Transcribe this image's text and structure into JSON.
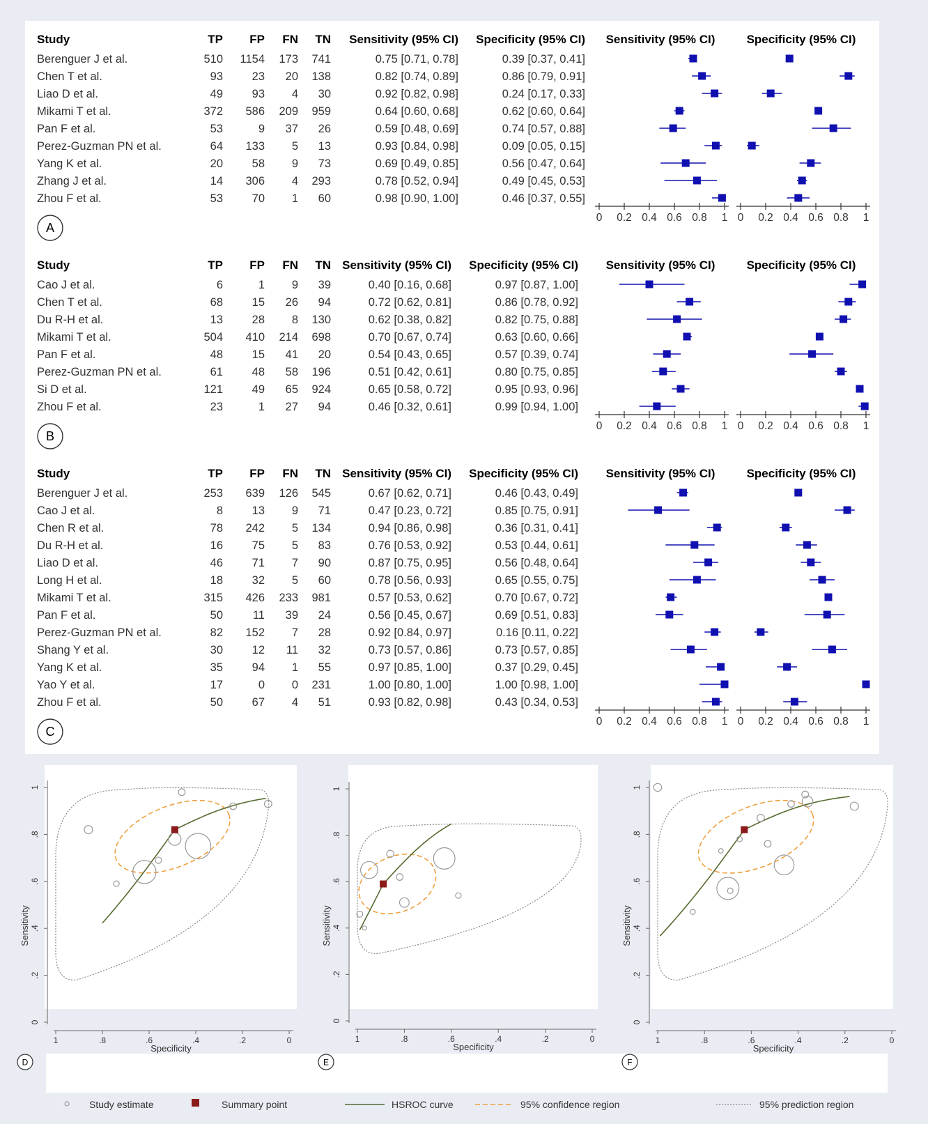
{
  "colors": {
    "marker": "#1010b0",
    "ci_line": "#1010b0",
    "summary": "#8b1a1a",
    "hsroc": "#556b2f",
    "confidence": "#f0a040",
    "prediction": "#888888",
    "study_circle": "#9a9a9a"
  },
  "forest_headers": {
    "study": "Study",
    "tp": "TP",
    "fp": "FP",
    "fn": "FN",
    "tn": "TN",
    "sens": "Sensitivity (95% CI)",
    "spec": "Specificity (95% CI)",
    "sens_plot": "Sensitivity (95% CI)",
    "spec_plot": "Specificity (95% CI)"
  },
  "panel_labels": {
    "A": "A",
    "B": "B",
    "C": "C",
    "D": "D",
    "E": "E",
    "F": "F"
  },
  "chart_data": [
    {
      "type": "table",
      "panel": "A",
      "axis_ticks": [
        "0",
        "0.2",
        "0.4",
        "0.6",
        "0.8",
        "1"
      ],
      "rows": [
        {
          "study": "Berenguer J et al.",
          "tp": 510,
          "fp": 1154,
          "fn": 173,
          "tn": 741,
          "sens": 0.75,
          "sens_lo": 0.71,
          "sens_hi": 0.78,
          "spec": 0.39,
          "spec_lo": 0.37,
          "spec_hi": 0.41,
          "sens_text": "0.75 [0.71, 0.78]",
          "spec_text": "0.39 [0.37, 0.41]"
        },
        {
          "study": "Chen T et al.",
          "tp": 93,
          "fp": 23,
          "fn": 20,
          "tn": 138,
          "sens": 0.82,
          "sens_lo": 0.74,
          "sens_hi": 0.89,
          "spec": 0.86,
          "spec_lo": 0.79,
          "spec_hi": 0.91,
          "sens_text": "0.82 [0.74, 0.89]",
          "spec_text": "0.86 [0.79, 0.91]"
        },
        {
          "study": "Liao D et al.",
          "tp": 49,
          "fp": 93,
          "fn": 4,
          "tn": 30,
          "sens": 0.92,
          "sens_lo": 0.82,
          "sens_hi": 0.98,
          "spec": 0.24,
          "spec_lo": 0.17,
          "spec_hi": 0.33,
          "sens_text": "0.92 [0.82, 0.98]",
          "spec_text": "0.24 [0.17, 0.33]"
        },
        {
          "study": "Mikami T et al.",
          "tp": 372,
          "fp": 586,
          "fn": 209,
          "tn": 959,
          "sens": 0.64,
          "sens_lo": 0.6,
          "sens_hi": 0.68,
          "spec": 0.62,
          "spec_lo": 0.6,
          "spec_hi": 0.64,
          "sens_text": "0.64 [0.60, 0.68]",
          "spec_text": "0.62 [0.60, 0.64]"
        },
        {
          "study": "Pan F et al.",
          "tp": 53,
          "fp": 9,
          "fn": 37,
          "tn": 26,
          "sens": 0.59,
          "sens_lo": 0.48,
          "sens_hi": 0.69,
          "spec": 0.74,
          "spec_lo": 0.57,
          "spec_hi": 0.88,
          "sens_text": "0.59 [0.48, 0.69]",
          "spec_text": "0.74 [0.57, 0.88]"
        },
        {
          "study": "Perez-Guzman PN et al.",
          "tp": 64,
          "fp": 133,
          "fn": 5,
          "tn": 13,
          "sens": 0.93,
          "sens_lo": 0.84,
          "sens_hi": 0.98,
          "spec": 0.09,
          "spec_lo": 0.05,
          "spec_hi": 0.15,
          "sens_text": "0.93 [0.84, 0.98]",
          "spec_text": "0.09 [0.05, 0.15]"
        },
        {
          "study": "Yang K et al.",
          "tp": 20,
          "fp": 58,
          "fn": 9,
          "tn": 73,
          "sens": 0.69,
          "sens_lo": 0.49,
          "sens_hi": 0.85,
          "spec": 0.56,
          "spec_lo": 0.47,
          "spec_hi": 0.64,
          "sens_text": "0.69 [0.49, 0.85]",
          "spec_text": "0.56 [0.47, 0.64]"
        },
        {
          "study": "Zhang J et al.",
          "tp": 14,
          "fp": 306,
          "fn": 4,
          "tn": 293,
          "sens": 0.78,
          "sens_lo": 0.52,
          "sens_hi": 0.94,
          "spec": 0.49,
          "spec_lo": 0.45,
          "spec_hi": 0.53,
          "sens_text": "0.78 [0.52, 0.94]",
          "spec_text": "0.49 [0.45, 0.53]"
        },
        {
          "study": "Zhou F et al.",
          "tp": 53,
          "fp": 70,
          "fn": 1,
          "tn": 60,
          "sens": 0.98,
          "sens_lo": 0.9,
          "sens_hi": 1.0,
          "spec": 0.46,
          "spec_lo": 0.37,
          "spec_hi": 0.55,
          "sens_text": "0.98 [0.90, 1.00]",
          "spec_text": "0.46 [0.37, 0.55]"
        }
      ]
    },
    {
      "type": "table",
      "panel": "B",
      "axis_ticks": [
        "0",
        "0.2",
        "0.4",
        "0.6",
        "0.8",
        "1"
      ],
      "rows": [
        {
          "study": "Cao J et al.",
          "tp": 6,
          "fp": 1,
          "fn": 9,
          "tn": 39,
          "sens": 0.4,
          "sens_lo": 0.16,
          "sens_hi": 0.68,
          "spec": 0.97,
          "spec_lo": 0.87,
          "spec_hi": 1.0,
          "sens_text": "0.40 [0.16, 0.68]",
          "spec_text": "0.97 [0.87, 1.00]"
        },
        {
          "study": "Chen T et al.",
          "tp": 68,
          "fp": 15,
          "fn": 26,
          "tn": 94,
          "sens": 0.72,
          "sens_lo": 0.62,
          "sens_hi": 0.81,
          "spec": 0.86,
          "spec_lo": 0.78,
          "spec_hi": 0.92,
          "sens_text": "0.72 [0.62, 0.81]",
          "spec_text": "0.86 [0.78, 0.92]"
        },
        {
          "study": "Du R-H et al.",
          "tp": 13,
          "fp": 28,
          "fn": 8,
          "tn": 130,
          "sens": 0.62,
          "sens_lo": 0.38,
          "sens_hi": 0.82,
          "spec": 0.82,
          "spec_lo": 0.75,
          "spec_hi": 0.88,
          "sens_text": "0.62 [0.38, 0.82]",
          "spec_text": "0.82 [0.75, 0.88]"
        },
        {
          "study": "Mikami T et al.",
          "tp": 504,
          "fp": 410,
          "fn": 214,
          "tn": 698,
          "sens": 0.7,
          "sens_lo": 0.67,
          "sens_hi": 0.74,
          "spec": 0.63,
          "spec_lo": 0.6,
          "spec_hi": 0.66,
          "sens_text": "0.70 [0.67, 0.74]",
          "spec_text": "0.63 [0.60, 0.66]"
        },
        {
          "study": "Pan F et al.",
          "tp": 48,
          "fp": 15,
          "fn": 41,
          "tn": 20,
          "sens": 0.54,
          "sens_lo": 0.43,
          "sens_hi": 0.65,
          "spec": 0.57,
          "spec_lo": 0.39,
          "spec_hi": 0.74,
          "sens_text": "0.54 [0.43, 0.65]",
          "spec_text": "0.57 [0.39, 0.74]"
        },
        {
          "study": "Perez-Guzman PN et al.",
          "tp": 61,
          "fp": 48,
          "fn": 58,
          "tn": 196,
          "sens": 0.51,
          "sens_lo": 0.42,
          "sens_hi": 0.61,
          "spec": 0.8,
          "spec_lo": 0.75,
          "spec_hi": 0.85,
          "sens_text": "0.51 [0.42, 0.61]",
          "spec_text": "0.80 [0.75, 0.85]"
        },
        {
          "study": "Si D et al.",
          "tp": 121,
          "fp": 49,
          "fn": 65,
          "tn": 924,
          "sens": 0.65,
          "sens_lo": 0.58,
          "sens_hi": 0.72,
          "spec": 0.95,
          "spec_lo": 0.93,
          "spec_hi": 0.96,
          "sens_text": "0.65 [0.58, 0.72]",
          "spec_text": "0.95 [0.93, 0.96]"
        },
        {
          "study": "Zhou F et al.",
          "tp": 23,
          "fp": 1,
          "fn": 27,
          "tn": 94,
          "sens": 0.46,
          "sens_lo": 0.32,
          "sens_hi": 0.61,
          "spec": 0.99,
          "spec_lo": 0.94,
          "spec_hi": 1.0,
          "sens_text": "0.46 [0.32, 0.61]",
          "spec_text": "0.99 [0.94, 1.00]"
        }
      ]
    },
    {
      "type": "table",
      "panel": "C",
      "axis_ticks": [
        "0",
        "0.2",
        "0.4",
        "0.6",
        "0.8",
        "1"
      ],
      "rows": [
        {
          "study": "Berenguer J et al.",
          "tp": 253,
          "fp": 639,
          "fn": 126,
          "tn": 545,
          "sens": 0.67,
          "sens_lo": 0.62,
          "sens_hi": 0.71,
          "spec": 0.46,
          "spec_lo": 0.43,
          "spec_hi": 0.49,
          "sens_text": "0.67 [0.62, 0.71]",
          "spec_text": "0.46 [0.43, 0.49]"
        },
        {
          "study": "Cao J et al.",
          "tp": 8,
          "fp": 13,
          "fn": 9,
          "tn": 71,
          "sens": 0.47,
          "sens_lo": 0.23,
          "sens_hi": 0.72,
          "spec": 0.85,
          "spec_lo": 0.75,
          "spec_hi": 0.91,
          "sens_text": "0.47 [0.23, 0.72]",
          "spec_text": "0.85 [0.75, 0.91]"
        },
        {
          "study": "Chen R et al.",
          "tp": 78,
          "fp": 242,
          "fn": 5,
          "tn": 134,
          "sens": 0.94,
          "sens_lo": 0.86,
          "sens_hi": 0.98,
          "spec": 0.36,
          "spec_lo": 0.31,
          "spec_hi": 0.41,
          "sens_text": "0.94 [0.86, 0.98]",
          "spec_text": "0.36 [0.31, 0.41]"
        },
        {
          "study": "Du R-H et al.",
          "tp": 16,
          "fp": 75,
          "fn": 5,
          "tn": 83,
          "sens": 0.76,
          "sens_lo": 0.53,
          "sens_hi": 0.92,
          "spec": 0.53,
          "spec_lo": 0.44,
          "spec_hi": 0.61,
          "sens_text": "0.76 [0.53, 0.92]",
          "spec_text": "0.53 [0.44, 0.61]"
        },
        {
          "study": "Liao D et al.",
          "tp": 46,
          "fp": 71,
          "fn": 7,
          "tn": 90,
          "sens": 0.87,
          "sens_lo": 0.75,
          "sens_hi": 0.95,
          "spec": 0.56,
          "spec_lo": 0.48,
          "spec_hi": 0.64,
          "sens_text": "0.87 [0.75, 0.95]",
          "spec_text": "0.56 [0.48, 0.64]"
        },
        {
          "study": "Long H et al.",
          "tp": 18,
          "fp": 32,
          "fn": 5,
          "tn": 60,
          "sens": 0.78,
          "sens_lo": 0.56,
          "sens_hi": 0.93,
          "spec": 0.65,
          "spec_lo": 0.55,
          "spec_hi": 0.75,
          "sens_text": "0.78 [0.56, 0.93]",
          "spec_text": "0.65 [0.55, 0.75]"
        },
        {
          "study": "Mikami T et al.",
          "tp": 315,
          "fp": 426,
          "fn": 233,
          "tn": 981,
          "sens": 0.57,
          "sens_lo": 0.53,
          "sens_hi": 0.62,
          "spec": 0.7,
          "spec_lo": 0.67,
          "spec_hi": 0.72,
          "sens_text": "0.57 [0.53, 0.62]",
          "spec_text": "0.70 [0.67, 0.72]"
        },
        {
          "study": "Pan F et al.",
          "tp": 50,
          "fp": 11,
          "fn": 39,
          "tn": 24,
          "sens": 0.56,
          "sens_lo": 0.45,
          "sens_hi": 0.67,
          "spec": 0.69,
          "spec_lo": 0.51,
          "spec_hi": 0.83,
          "sens_text": "0.56 [0.45, 0.67]",
          "spec_text": "0.69 [0.51, 0.83]"
        },
        {
          "study": "Perez-Guzman PN et al.",
          "tp": 82,
          "fp": 152,
          "fn": 7,
          "tn": 28,
          "sens": 0.92,
          "sens_lo": 0.84,
          "sens_hi": 0.97,
          "spec": 0.16,
          "spec_lo": 0.11,
          "spec_hi": 0.22,
          "sens_text": "0.92 [0.84, 0.97]",
          "spec_text": "0.16 [0.11, 0.22]"
        },
        {
          "study": "Shang Y et al.",
          "tp": 30,
          "fp": 12,
          "fn": 11,
          "tn": 32,
          "sens": 0.73,
          "sens_lo": 0.57,
          "sens_hi": 0.86,
          "spec": 0.73,
          "spec_lo": 0.57,
          "spec_hi": 0.85,
          "sens_text": "0.73 [0.57, 0.86]",
          "spec_text": "0.73 [0.57, 0.85]"
        },
        {
          "study": "Yang K et al.",
          "tp": 35,
          "fp": 94,
          "fn": 1,
          "tn": 55,
          "sens": 0.97,
          "sens_lo": 0.85,
          "sens_hi": 1.0,
          "spec": 0.37,
          "spec_lo": 0.29,
          "spec_hi": 0.45,
          "sens_text": "0.97 [0.85, 1.00]",
          "spec_text": "0.37 [0.29, 0.45]"
        },
        {
          "study": "Yao Y et al.",
          "tp": 17,
          "fp": 0,
          "fn": 0,
          "tn": 231,
          "sens": 1.0,
          "sens_lo": 0.8,
          "sens_hi": 1.0,
          "spec": 1.0,
          "spec_lo": 0.98,
          "spec_hi": 1.0,
          "sens_text": "1.00 [0.80, 1.00]",
          "spec_text": "1.00 [0.98, 1.00]"
        },
        {
          "study": "Zhou F et al.",
          "tp": 50,
          "fp": 67,
          "fn": 4,
          "tn": 51,
          "sens": 0.93,
          "sens_lo": 0.82,
          "sens_hi": 0.98,
          "spec": 0.43,
          "spec_lo": 0.34,
          "spec_hi": 0.53,
          "sens_text": "0.93 [0.82, 0.98]",
          "spec_text": "0.43 [0.34, 0.53]"
        }
      ]
    },
    {
      "type": "scatter",
      "panel": "D",
      "xlabel": "Specificity",
      "ylabel": "Sensitivity",
      "xlim": [
        1,
        0
      ],
      "ylim": [
        0,
        1
      ],
      "x_ticks": [
        "1",
        ".8",
        ".6",
        ".4",
        ".2",
        "0"
      ],
      "y_ticks": [
        "0",
        ".2",
        ".4",
        ".6",
        ".8",
        "1"
      ],
      "summary_point": {
        "spec": 0.49,
        "sens": 0.82
      },
      "hsroc_range": [
        0.8,
        0.1
      ],
      "confidence_region": {
        "center": [
          0.5,
          0.79
        ],
        "spec_halfwidth": 0.26,
        "sens_halfwidth": 0.13
      },
      "prediction_region": {
        "spec": [
          0.09,
          1.0
        ],
        "sens": [
          0.18,
          0.99
        ]
      },
      "studies": [
        {
          "spec": 0.39,
          "sens": 0.75,
          "weight": 2578
        },
        {
          "spec": 0.86,
          "sens": 0.82,
          "weight": 274
        },
        {
          "spec": 0.24,
          "sens": 0.92,
          "weight": 176
        },
        {
          "spec": 0.62,
          "sens": 0.64,
          "weight": 2126
        },
        {
          "spec": 0.74,
          "sens": 0.59,
          "weight": 125
        },
        {
          "spec": 0.09,
          "sens": 0.93,
          "weight": 215
        },
        {
          "spec": 0.56,
          "sens": 0.69,
          "weight": 160
        },
        {
          "spec": 0.49,
          "sens": 0.78,
          "weight": 617
        },
        {
          "spec": 0.46,
          "sens": 0.98,
          "weight": 184
        }
      ]
    },
    {
      "type": "scatter",
      "panel": "E",
      "xlabel": "Specificity",
      "ylabel": "Sensitivity",
      "xlim": [
        1,
        0
      ],
      "ylim": [
        0,
        1
      ],
      "x_ticks": [
        "1",
        ".8",
        ".6",
        ".4",
        ".2",
        "0"
      ],
      "y_ticks": [
        "0",
        ".2",
        ".4",
        ".6",
        ".8",
        "1"
      ],
      "summary_point": {
        "spec": 0.89,
        "sens": 0.59
      },
      "hsroc_range": [
        0.99,
        0.6
      ],
      "confidence_region": {
        "center": [
          0.83,
          0.59
        ],
        "spec_halfwidth": 0.17,
        "sens_halfwidth": 0.12
      },
      "prediction_region": {
        "spec": [
          0.05,
          1.0
        ],
        "sens": [
          0.29,
          0.84
        ]
      },
      "studies": [
        {
          "spec": 0.97,
          "sens": 0.4,
          "weight": 55
        },
        {
          "spec": 0.86,
          "sens": 0.72,
          "weight": 203
        },
        {
          "spec": 0.82,
          "sens": 0.62,
          "weight": 179
        },
        {
          "spec": 0.63,
          "sens": 0.7,
          "weight": 1826
        },
        {
          "spec": 0.57,
          "sens": 0.54,
          "weight": 124
        },
        {
          "spec": 0.8,
          "sens": 0.51,
          "weight": 363
        },
        {
          "spec": 0.95,
          "sens": 0.65,
          "weight": 1159
        },
        {
          "spec": 0.99,
          "sens": 0.46,
          "weight": 145
        }
      ]
    },
    {
      "type": "scatter",
      "panel": "F",
      "xlabel": "Specificity",
      "ylabel": "Sensitivity",
      "xlim": [
        1,
        0
      ],
      "ylim": [
        0,
        1
      ],
      "x_ticks": [
        "1",
        ".8",
        ".6",
        ".4",
        ".2",
        "0"
      ],
      "y_ticks": [
        "0",
        ".2",
        ".4",
        ".6",
        ".8",
        "1"
      ],
      "summary_point": {
        "spec": 0.63,
        "sens": 0.82
      },
      "hsroc_range": [
        0.99,
        0.18
      ],
      "confidence_region": {
        "center": [
          0.58,
          0.79
        ],
        "spec_halfwidth": 0.26,
        "sens_halfwidth": 0.13
      },
      "prediction_region": {
        "spec": [
          0.02,
          1.0
        ],
        "sens": [
          0.18,
          0.99
        ]
      },
      "studies": [
        {
          "spec": 0.46,
          "sens": 0.67,
          "weight": 1563
        },
        {
          "spec": 0.85,
          "sens": 0.47,
          "weight": 101
        },
        {
          "spec": 0.36,
          "sens": 0.94,
          "weight": 459
        },
        {
          "spec": 0.53,
          "sens": 0.76,
          "weight": 179
        },
        {
          "spec": 0.56,
          "sens": 0.87,
          "weight": 214
        },
        {
          "spec": 0.65,
          "sens": 0.78,
          "weight": 115
        },
        {
          "spec": 0.7,
          "sens": 0.57,
          "weight": 1955
        },
        {
          "spec": 0.69,
          "sens": 0.56,
          "weight": 124
        },
        {
          "spec": 0.16,
          "sens": 0.92,
          "weight": 269
        },
        {
          "spec": 0.73,
          "sens": 0.73,
          "weight": 85
        },
        {
          "spec": 0.37,
          "sens": 0.97,
          "weight": 185
        },
        {
          "spec": 1.0,
          "sens": 1.0,
          "weight": 248
        },
        {
          "spec": 0.43,
          "sens": 0.93,
          "weight": 172
        }
      ]
    }
  ],
  "legend": {
    "study_estimate": "Study estimate",
    "summary_point": "Summary point",
    "hsroc_curve": "HSROC curve",
    "confidence_region": "95% confidence  region",
    "prediction_region": "95% prediction  region"
  }
}
